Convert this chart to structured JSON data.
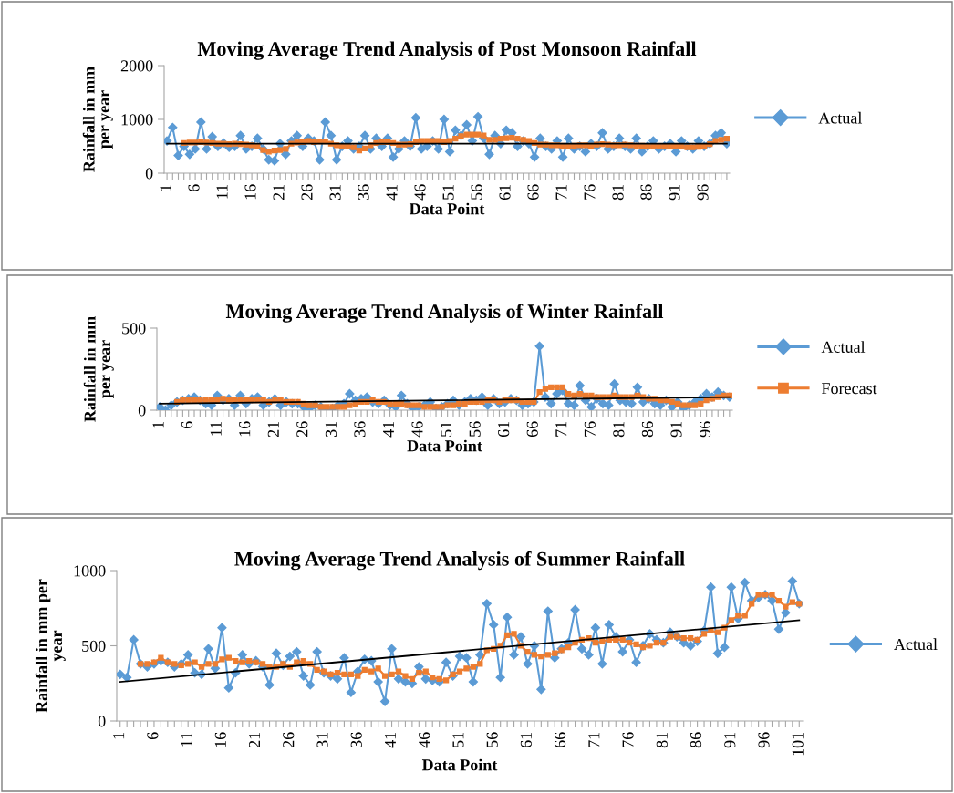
{
  "chart_data": [
    {
      "type": "line",
      "title": "Moving Average Trend Analysis of Post Monsoon Rainfall",
      "xlabel": "Data Point",
      "ylabel": "Rainfall in mm\nper year",
      "x": [
        1,
        2,
        3,
        4,
        5,
        6,
        7,
        8,
        9,
        10,
        11,
        12,
        13,
        14,
        15,
        16,
        17,
        18,
        19,
        20,
        21,
        22,
        23,
        24,
        25,
        26,
        27,
        28,
        29,
        30,
        31,
        32,
        33,
        34,
        35,
        36,
        37,
        38,
        39,
        40,
        41,
        42,
        43,
        44,
        45,
        46,
        47,
        48,
        49,
        50,
        51,
        52,
        53,
        54,
        55,
        56,
        57,
        58,
        59,
        60,
        61,
        62,
        63,
        64,
        65,
        66,
        67,
        68,
        69,
        70,
        71,
        72,
        73,
        74,
        75,
        76,
        77,
        78,
        79,
        80,
        81,
        82,
        83,
        84,
        85,
        86,
        87,
        88,
        89,
        90,
        91,
        92,
        93,
        94,
        95,
        96,
        97,
        98,
        99,
        100
      ],
      "series": [
        {
          "name": "Actual",
          "color": "#5b9bd5",
          "marker": "diamond",
          "values": [
            600,
            850,
            330,
            500,
            350,
            450,
            950,
            450,
            680,
            500,
            560,
            480,
            500,
            700,
            450,
            500,
            650,
            450,
            250,
            230,
            550,
            350,
            600,
            700,
            500,
            650,
            600,
            250,
            950,
            700,
            250,
            500,
            600,
            450,
            500,
            700,
            450,
            650,
            500,
            650,
            300,
            450,
            600,
            500,
            1030,
            450,
            500,
            600,
            450,
            1000,
            400,
            800,
            700,
            900,
            600,
            1050,
            650,
            350,
            700,
            550,
            800,
            750,
            500,
            600,
            550,
            300,
            650,
            500,
            450,
            600,
            300,
            650,
            450,
            500,
            400,
            550,
            500,
            750,
            450,
            500,
            650,
            500,
            450,
            650,
            400,
            500,
            600,
            450,
            500,
            550,
            400,
            600,
            500,
            450,
            600,
            500,
            550,
            700,
            750,
            550
          ]
        },
        {
          "color": "#ed7d31",
          "marker": "square",
          "values": [
            null,
            null,
            null,
            560,
            570,
            570,
            580,
            570,
            560,
            550,
            550,
            540,
            550,
            540,
            530,
            520,
            500,
            430,
            400,
            420,
            430,
            450,
            550,
            570,
            580,
            600,
            580,
            590,
            590,
            550,
            520,
            500,
            500,
            480,
            420,
            460,
            520,
            560,
            580,
            580,
            560,
            530,
            530,
            540,
            580,
            600,
            600,
            600,
            600,
            580,
            600,
            640,
            690,
            720,
            720,
            720,
            700,
            620,
            620,
            640,
            650,
            660,
            640,
            620,
            600,
            560,
            530,
            530,
            520,
            520,
            510,
            500,
            510,
            520,
            520,
            510,
            530,
            540,
            530,
            520,
            520,
            530,
            520,
            510,
            510,
            500,
            500,
            500,
            500,
            500,
            500,
            500,
            480,
            480,
            490,
            500,
            540,
            600,
            620,
            640
          ]
        },
        {
          "type": "line",
          "color": "#000000",
          "marker": "none",
          "x": [
            1,
            100
          ],
          "values": [
            550,
            550
          ]
        }
      ],
      "xlim": [
        0.5,
        100.5
      ],
      "ylim": [
        0,
        2000
      ],
      "yticks": [
        0,
        1000,
        2000
      ],
      "legend": "right",
      "xticks": [
        1,
        {
          "value": 2,
          "label": null
        },
        {
          "value": 3,
          "label": null
        },
        {
          "value": 4,
          "label": null
        },
        {
          "value": 5,
          "label": null
        },
        6,
        {
          "value": 7,
          "label": null
        },
        {
          "value": 8,
          "label": null
        },
        {
          "value": 9,
          "label": null
        },
        {
          "value": 10,
          "label": null
        },
        11,
        {
          "value": 12,
          "label": null
        },
        {
          "value": 13,
          "label": null
        },
        {
          "value": 14,
          "label": null
        },
        {
          "value": 15,
          "label": null
        },
        16,
        {
          "value": 17,
          "label": null
        },
        {
          "value": 18,
          "label": null
        },
        {
          "value": 19,
          "label": null
        },
        {
          "value": 20,
          "label": null
        },
        21,
        {
          "value": 22,
          "label": null
        },
        {
          "value": 23,
          "label": null
        },
        {
          "value": 24,
          "label": null
        },
        {
          "value": 25,
          "label": null
        },
        26,
        {
          "value": 27,
          "label": null
        },
        {
          "value": 28,
          "label": null
        },
        {
          "value": 29,
          "label": null
        },
        {
          "value": 30,
          "label": null
        },
        31,
        {
          "value": 32,
          "label": null
        },
        {
          "value": 33,
          "label": null
        },
        {
          "value": 34,
          "label": null
        },
        {
          "value": 35,
          "label": null
        },
        36,
        {
          "value": 37,
          "label": null
        },
        {
          "value": 38,
          "label": null
        },
        {
          "value": 39,
          "label": null
        },
        {
          "value": 40,
          "label": null
        },
        41,
        {
          "value": 42,
          "label": null
        },
        {
          "value": 43,
          "label": null
        },
        {
          "value": 44,
          "label": null
        },
        {
          "value": 45,
          "label": null
        },
        46,
        {
          "value": 47,
          "label": null
        },
        {
          "value": 48,
          "label": null
        },
        {
          "value": 49,
          "label": null
        },
        {
          "value": 50,
          "label": null
        },
        51,
        {
          "value": 52,
          "label": null
        },
        {
          "value": 53,
          "label": null
        },
        {
          "value": 54,
          "label": null
        },
        {
          "value": 55,
          "label": null
        },
        56,
        {
          "value": 57,
          "label": null
        },
        {
          "value": 58,
          "label": null
        },
        {
          "value": 59,
          "label": null
        },
        {
          "value": 60,
          "label": null
        },
        61,
        {
          "value": 62,
          "label": null
        },
        {
          "value": 63,
          "label": null
        },
        {
          "value": 64,
          "label": null
        },
        {
          "value": 65,
          "label": null
        },
        66,
        {
          "value": 67,
          "label": null
        },
        {
          "value": 68,
          "label": null
        },
        {
          "value": 69,
          "label": null
        },
        {
          "value": 70,
          "label": null
        },
        71,
        {
          "value": 72,
          "label": null
        },
        {
          "value": 73,
          "label": null
        },
        {
          "value": 74,
          "label": null
        },
        {
          "value": 75,
          "label": null
        },
        76,
        {
          "value": 77,
          "label": null
        },
        {
          "value": 78,
          "label": null
        },
        {
          "value": 79,
          "label": null
        },
        {
          "value": 80,
          "label": null
        },
        81,
        {
          "value": 82,
          "label": null
        },
        {
          "value": 83,
          "label": null
        },
        {
          "value": 84,
          "label": null
        },
        {
          "value": 85,
          "label": null
        },
        86,
        {
          "value": 87,
          "label": null
        },
        {
          "value": 88,
          "label": null
        },
        {
          "value": 89,
          "label": null
        },
        {
          "value": 90,
          "label": null
        },
        91,
        {
          "value": 92,
          "label": null
        },
        {
          "value": 93,
          "label": null
        },
        {
          "value": 94,
          "label": null
        },
        {
          "value": 95,
          "label": null
        },
        96,
        {
          "value": 97,
          "label": null
        },
        {
          "value": 98,
          "label": null
        },
        {
          "value": 99,
          "label": null
        },
        {
          "value": 100,
          "label": null
        }
      ]
    },
    {
      "type": "line",
      "title": "Moving Average Trend Analysis of Winter Rainfall",
      "xlabel": "Data Point",
      "ylabel": "Rainfall in mm\nper year",
      "x": [
        1,
        2,
        3,
        4,
        5,
        6,
        7,
        8,
        9,
        10,
        11,
        12,
        13,
        14,
        15,
        16,
        17,
        18,
        19,
        20,
        21,
        22,
        23,
        24,
        25,
        26,
        27,
        28,
        29,
        30,
        31,
        32,
        33,
        34,
        35,
        36,
        37,
        38,
        39,
        40,
        41,
        42,
        43,
        44,
        45,
        46,
        47,
        48,
        49,
        50,
        51,
        52,
        53,
        54,
        55,
        56,
        57,
        58,
        59,
        60,
        61,
        62,
        63,
        64,
        65,
        66,
        67,
        68,
        69,
        70,
        71,
        72,
        73,
        74,
        75,
        76,
        77,
        78,
        79,
        80,
        81,
        82,
        83,
        84,
        85,
        86,
        87,
        88,
        89,
        90,
        91,
        92,
        93,
        94,
        95,
        96,
        97,
        98,
        99,
        100
      ],
      "series": [
        {
          "name": "Actual",
          "color": "#5b9bd5",
          "marker": "diamond",
          "values": [
            20,
            0,
            30,
            50,
            60,
            70,
            80,
            60,
            40,
            30,
            90,
            60,
            70,
            30,
            90,
            40,
            70,
            80,
            30,
            50,
            70,
            30,
            50,
            40,
            40,
            20,
            10,
            30,
            20,
            0,
            10,
            30,
            40,
            100,
            60,
            70,
            80,
            50,
            40,
            60,
            30,
            20,
            90,
            40,
            10,
            20,
            30,
            50,
            10,
            20,
            40,
            60,
            30,
            50,
            70,
            60,
            80,
            30,
            70,
            40,
            50,
            70,
            60,
            30,
            40,
            50,
            390,
            80,
            40,
            100,
            120,
            40,
            30,
            150,
            60,
            20,
            70,
            40,
            30,
            160,
            60,
            50,
            40,
            140,
            50,
            70,
            40,
            30,
            60,
            20,
            50,
            10,
            30,
            50,
            70,
            100,
            80,
            110,
            90,
            80
          ]
        },
        {
          "name": "Forecast",
          "color": "#ed7d31",
          "marker": "square",
          "values": [
            null,
            null,
            null,
            50,
            60,
            60,
            60,
            60,
            60,
            60,
            60,
            70,
            60,
            60,
            60,
            60,
            60,
            60,
            60,
            50,
            60,
            60,
            50,
            50,
            50,
            40,
            30,
            30,
            20,
            20,
            20,
            20,
            20,
            30,
            40,
            50,
            50,
            60,
            50,
            50,
            40,
            40,
            40,
            30,
            30,
            30,
            20,
            20,
            20,
            20,
            30,
            30,
            40,
            40,
            50,
            50,
            50,
            60,
            60,
            50,
            60,
            60,
            60,
            50,
            50,
            50,
            110,
            130,
            140,
            140,
            140,
            100,
            90,
            100,
            90,
            90,
            80,
            80,
            80,
            90,
            80,
            80,
            80,
            90,
            80,
            70,
            70,
            60,
            60,
            50,
            40,
            30,
            30,
            30,
            40,
            60,
            70,
            80,
            90,
            90
          ]
        },
        {
          "type": "line",
          "color": "#000000",
          "marker": "none",
          "x": [
            1,
            100
          ],
          "values": [
            40,
            80
          ]
        }
      ],
      "xlim": [
        0.5,
        100.5
      ],
      "ylim": [
        0,
        500
      ],
      "yticks": [
        0,
        500
      ],
      "legend": "right",
      "xticks": [
        1,
        {
          "value": 2,
          "label": null
        },
        {
          "value": 3,
          "label": null
        },
        {
          "value": 4,
          "label": null
        },
        {
          "value": 5,
          "label": null
        },
        6,
        {
          "value": 7,
          "label": null
        },
        {
          "value": 8,
          "label": null
        },
        {
          "value": 9,
          "label": null
        },
        {
          "value": 10,
          "label": null
        },
        11,
        {
          "value": 12,
          "label": null
        },
        {
          "value": 13,
          "label": null
        },
        {
          "value": 14,
          "label": null
        },
        {
          "value": 15,
          "label": null
        },
        16,
        {
          "value": 17,
          "label": null
        },
        {
          "value": 18,
          "label": null
        },
        {
          "value": 19,
          "label": null
        },
        {
          "value": 20,
          "label": null
        },
        21,
        {
          "value": 22,
          "label": null
        },
        {
          "value": 23,
          "label": null
        },
        {
          "value": 24,
          "label": null
        },
        {
          "value": 25,
          "label": null
        },
        26,
        {
          "value": 27,
          "label": null
        },
        {
          "value": 28,
          "label": null
        },
        {
          "value": 29,
          "label": null
        },
        {
          "value": 30,
          "label": null
        },
        31,
        {
          "value": 32,
          "label": null
        },
        {
          "value": 33,
          "label": null
        },
        {
          "value": 34,
          "label": null
        },
        {
          "value": 35,
          "label": null
        },
        36,
        {
          "value": 37,
          "label": null
        },
        {
          "value": 38,
          "label": null
        },
        {
          "value": 39,
          "label": null
        },
        {
          "value": 40,
          "label": null
        },
        41,
        {
          "value": 42,
          "label": null
        },
        {
          "value": 43,
          "label": null
        },
        {
          "value": 44,
          "label": null
        },
        {
          "value": 45,
          "label": null
        },
        46,
        {
          "value": 47,
          "label": null
        },
        {
          "value": 48,
          "label": null
        },
        {
          "value": 49,
          "label": null
        },
        {
          "value": 50,
          "label": null
        },
        51,
        {
          "value": 52,
          "label": null
        },
        {
          "value": 53,
          "label": null
        },
        {
          "value": 54,
          "label": null
        },
        {
          "value": 55,
          "label": null
        },
        56,
        {
          "value": 57,
          "label": null
        },
        {
          "value": 58,
          "label": null
        },
        {
          "value": 59,
          "label": null
        },
        {
          "value": 60,
          "label": null
        },
        61,
        {
          "value": 62,
          "label": null
        },
        {
          "value": 63,
          "label": null
        },
        {
          "value": 64,
          "label": null
        },
        {
          "value": 65,
          "label": null
        },
        66,
        {
          "value": 67,
          "label": null
        },
        {
          "value": 68,
          "label": null
        },
        {
          "value": 69,
          "label": null
        },
        {
          "value": 70,
          "label": null
        },
        71,
        {
          "value": 72,
          "label": null
        },
        {
          "value": 73,
          "label": null
        },
        {
          "value": 74,
          "label": null
        },
        {
          "value": 75,
          "label": null
        },
        76,
        {
          "value": 77,
          "label": null
        },
        {
          "value": 78,
          "label": null
        },
        {
          "value": 79,
          "label": null
        },
        {
          "value": 80,
          "label": null
        },
        81,
        {
          "value": 82,
          "label": null
        },
        {
          "value": 83,
          "label": null
        },
        {
          "value": 84,
          "label": null
        },
        {
          "value": 85,
          "label": null
        },
        86,
        {
          "value": 87,
          "label": null
        },
        {
          "value": 88,
          "label": null
        },
        {
          "value": 89,
          "label": null
        },
        {
          "value": 90,
          "label": null
        },
        91,
        {
          "value": 92,
          "label": null
        },
        {
          "value": 93,
          "label": null
        },
        {
          "value": 94,
          "label": null
        },
        {
          "value": 95,
          "label": null
        },
        96,
        {
          "value": 97,
          "label": null
        },
        {
          "value": 98,
          "label": null
        },
        {
          "value": 99,
          "label": null
        },
        {
          "value": 100,
          "label": null
        }
      ]
    },
    {
      "type": "line",
      "title": "Moving Average Trend Analysis of Summer Rainfall",
      "xlabel": "Data Point",
      "ylabel": "Rainfall in mm per\nyear",
      "x": [
        1,
        2,
        3,
        4,
        5,
        6,
        7,
        8,
        9,
        10,
        11,
        12,
        13,
        14,
        15,
        16,
        17,
        18,
        19,
        20,
        21,
        22,
        23,
        24,
        25,
        26,
        27,
        28,
        29,
        30,
        31,
        32,
        33,
        34,
        35,
        36,
        37,
        38,
        39,
        40,
        41,
        42,
        43,
        44,
        45,
        46,
        47,
        48,
        49,
        50,
        51,
        52,
        53,
        54,
        55,
        56,
        57,
        58,
        59,
        60,
        61,
        62,
        63,
        64,
        65,
        66,
        67,
        68,
        69,
        70,
        71,
        72,
        73,
        74,
        75,
        76,
        77,
        78,
        79,
        80,
        81,
        82,
        83,
        84,
        85,
        86,
        87,
        88,
        89,
        90,
        91,
        92,
        93,
        94,
        95,
        96,
        97,
        98,
        99,
        100,
        101
      ],
      "series": [
        {
          "name": "Actual",
          "color": "#5b9bd5",
          "marker": "diamond",
          "values": [
            310,
            290,
            540,
            380,
            360,
            380,
            400,
            390,
            360,
            380,
            440,
            320,
            310,
            480,
            350,
            620,
            220,
            320,
            440,
            380,
            400,
            360,
            240,
            450,
            370,
            430,
            460,
            300,
            240,
            460,
            320,
            300,
            280,
            420,
            190,
            330,
            410,
            400,
            260,
            130,
            480,
            280,
            260,
            250,
            360,
            280,
            270,
            260,
            390,
            300,
            430,
            420,
            260,
            440,
            780,
            640,
            290,
            690,
            440,
            560,
            380,
            500,
            210,
            730,
            420,
            480,
            520,
            740,
            480,
            440,
            620,
            380,
            640,
            560,
            460,
            540,
            390,
            500,
            580,
            540,
            520,
            590,
            560,
            520,
            500,
            530,
            600,
            890,
            450,
            490,
            890,
            680,
            920,
            800,
            820,
            840,
            800,
            610,
            720,
            930,
            780
          ]
        },
        {
          "color": "#ed7d31",
          "marker": "square",
          "values": [
            null,
            null,
            null,
            380,
            380,
            390,
            420,
            390,
            380,
            370,
            380,
            390,
            360,
            380,
            380,
            410,
            420,
            400,
            390,
            400,
            390,
            380,
            360,
            360,
            380,
            360,
            390,
            400,
            380,
            340,
            330,
            310,
            320,
            310,
            310,
            300,
            340,
            330,
            350,
            300,
            310,
            330,
            300,
            280,
            320,
            330,
            290,
            280,
            270,
            310,
            330,
            350,
            360,
            380,
            470,
            480,
            500,
            570,
            580,
            500,
            460,
            440,
            430,
            440,
            450,
            470,
            490,
            520,
            540,
            550,
            520,
            530,
            540,
            540,
            540,
            520,
            510,
            490,
            500,
            520,
            520,
            560,
            560,
            550,
            550,
            540,
            580,
            600,
            590,
            620,
            670,
            700,
            700,
            780,
            840,
            840,
            840,
            800,
            760,
            790,
            780
          ]
        },
        {
          "type": "line",
          "color": "#000000",
          "marker": "none",
          "x": [
            1,
            101
          ],
          "values": [
            260,
            670
          ]
        }
      ],
      "xlim": [
        0.5,
        101.5
      ],
      "ylim": [
        0,
        1000
      ],
      "yticks": [
        0,
        500,
        1000
      ],
      "legend": "right",
      "xticks": [
        1,
        {
          "value": 2,
          "label": null
        },
        {
          "value": 3,
          "label": null
        },
        {
          "value": 4,
          "label": null
        },
        {
          "value": 5,
          "label": null
        },
        6,
        {
          "value": 7,
          "label": null
        },
        {
          "value": 8,
          "label": null
        },
        {
          "value": 9,
          "label": null
        },
        {
          "value": 10,
          "label": null
        },
        11,
        {
          "value": 12,
          "label": null
        },
        {
          "value": 13,
          "label": null
        },
        {
          "value": 14,
          "label": null
        },
        {
          "value": 15,
          "label": null
        },
        16,
        {
          "value": 17,
          "label": null
        },
        {
          "value": 18,
          "label": null
        },
        {
          "value": 19,
          "label": null
        },
        {
          "value": 20,
          "label": null
        },
        21,
        {
          "value": 22,
          "label": null
        },
        {
          "value": 23,
          "label": null
        },
        {
          "value": 24,
          "label": null
        },
        {
          "value": 25,
          "label": null
        },
        26,
        {
          "value": 27,
          "label": null
        },
        {
          "value": 28,
          "label": null
        },
        {
          "value": 29,
          "label": null
        },
        {
          "value": 30,
          "label": null
        },
        31,
        {
          "value": 32,
          "label": null
        },
        {
          "value": 33,
          "label": null
        },
        {
          "value": 34,
          "label": null
        },
        {
          "value": 35,
          "label": null
        },
        36,
        {
          "value": 37,
          "label": null
        },
        {
          "value": 38,
          "label": null
        },
        {
          "value": 39,
          "label": null
        },
        {
          "value": 40,
          "label": null
        },
        41,
        {
          "value": 42,
          "label": null
        },
        {
          "value": 43,
          "label": null
        },
        {
          "value": 44,
          "label": null
        },
        {
          "value": 45,
          "label": null
        },
        46,
        {
          "value": 47,
          "label": null
        },
        {
          "value": 48,
          "label": null
        },
        {
          "value": 49,
          "label": null
        },
        {
          "value": 50,
          "label": null
        },
        51,
        {
          "value": 52,
          "label": null
        },
        {
          "value": 53,
          "label": null
        },
        {
          "value": 54,
          "label": null
        },
        {
          "value": 55,
          "label": null
        },
        56,
        {
          "value": 57,
          "label": null
        },
        {
          "value": 58,
          "label": null
        },
        {
          "value": 59,
          "label": null
        },
        {
          "value": 60,
          "label": null
        },
        61,
        {
          "value": 62,
          "label": null
        },
        {
          "value": 63,
          "label": null
        },
        {
          "value": 64,
          "label": null
        },
        {
          "value": 65,
          "label": null
        },
        66,
        {
          "value": 67,
          "label": null
        },
        {
          "value": 68,
          "label": null
        },
        {
          "value": 69,
          "label": null
        },
        {
          "value": 70,
          "label": null
        },
        71,
        {
          "value": 72,
          "label": null
        },
        {
          "value": 73,
          "label": null
        },
        {
          "value": 74,
          "label": null
        },
        {
          "value": 75,
          "label": null
        },
        76,
        {
          "value": 77,
          "label": null
        },
        {
          "value": 78,
          "label": null
        },
        {
          "value": 79,
          "label": null
        },
        {
          "value": 80,
          "label": null
        },
        81,
        {
          "value": 82,
          "label": null
        },
        {
          "value": 83,
          "label": null
        },
        {
          "value": 84,
          "label": null
        },
        {
          "value": 85,
          "label": null
        },
        86,
        {
          "value": 87,
          "label": null
        },
        {
          "value": 88,
          "label": null
        },
        {
          "value": 89,
          "label": null
        },
        {
          "value": 90,
          "label": null
        },
        91,
        {
          "value": 92,
          "label": null
        },
        {
          "value": 93,
          "label": null
        },
        {
          "value": 94,
          "label": null
        },
        {
          "value": 95,
          "label": null
        },
        96,
        {
          "value": 97,
          "label": null
        },
        {
          "value": 98,
          "label": null
        },
        {
          "value": 99,
          "label": null
        },
        {
          "value": 100,
          "label": null
        },
        101
      ]
    }
  ]
}
